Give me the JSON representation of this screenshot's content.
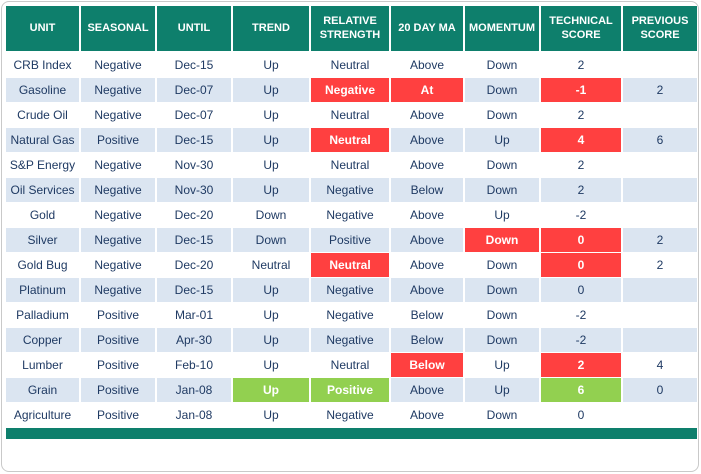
{
  "chart_data": {
    "type": "table",
    "columns": [
      "UNIT",
      "SEASONAL",
      "UNTIL",
      "TREND",
      "RELATIVE STRENGTH",
      "20 DAY MA",
      "MOMENTUM",
      "TECHNICAL SCORE",
      "PREVIOUS SCORE"
    ],
    "rows": [
      [
        "CRB Index",
        "Negative",
        "Dec-15",
        "Up",
        "Neutral",
        "Above",
        "Down",
        "2",
        ""
      ],
      [
        "Gasoline",
        "Negative",
        "Dec-07",
        "Up",
        {
          "text": "Negative",
          "bg": "red"
        },
        {
          "text": "At",
          "bg": "red"
        },
        "Down",
        {
          "text": "-1",
          "bg": "red"
        },
        "2"
      ],
      [
        "Crude Oil",
        "Negative",
        "Dec-07",
        "Up",
        "Neutral",
        "Above",
        "Down",
        "2",
        ""
      ],
      [
        "Natural Gas",
        "Positive",
        "Dec-15",
        "Up",
        {
          "text": "Neutral",
          "bg": "red"
        },
        "Above",
        "Up",
        {
          "text": "4",
          "bg": "red"
        },
        "6"
      ],
      [
        "S&P Energy",
        "Negative",
        "Nov-30",
        "Up",
        "Neutral",
        "Above",
        "Down",
        "2",
        ""
      ],
      [
        "Oil Services",
        "Negative",
        "Nov-30",
        "Up",
        "Negative",
        "Below",
        "Down",
        "2",
        ""
      ],
      [
        "Gold",
        "Negative",
        "Dec-20",
        "Down",
        "Negative",
        "Above",
        "Up",
        "-2",
        ""
      ],
      [
        "Silver",
        "Negative",
        "Dec-15",
        "Down",
        "Positive",
        "Above",
        {
          "text": "Down",
          "bg": "red"
        },
        {
          "text": "0",
          "bg": "red"
        },
        "2"
      ],
      [
        "Gold Bug",
        "Negative",
        "Dec-20",
        "Neutral",
        {
          "text": "Neutral",
          "bg": "red"
        },
        "Above",
        "Down",
        {
          "text": "0",
          "bg": "red"
        },
        "2"
      ],
      [
        "Platinum",
        "Negative",
        "Dec-15",
        "Up",
        "Negative",
        "Above",
        "Down",
        "0",
        ""
      ],
      [
        "Palladium",
        "Positive",
        "Mar-01",
        "Up",
        "Negative",
        "Below",
        "Down",
        "-2",
        ""
      ],
      [
        "Copper",
        "Positive",
        "Apr-30",
        "Up",
        "Negative",
        "Below",
        "Down",
        "-2",
        ""
      ],
      [
        "Lumber",
        "Positive",
        "Feb-10",
        "Up",
        "Neutral",
        {
          "text": "Below",
          "bg": "red"
        },
        "Up",
        {
          "text": "2",
          "bg": "red"
        },
        "4"
      ],
      [
        "Grain",
        "Positive",
        "Jan-08",
        {
          "text": "Up",
          "bg": "green"
        },
        {
          "text": "Positive",
          "bg": "green"
        },
        "Above",
        "Up",
        {
          "text": "6",
          "bg": "green"
        },
        "0"
      ],
      [
        "Agriculture",
        "Positive",
        "Jan-08",
        "Up",
        "Negative",
        "Above",
        "Down",
        "0",
        ""
      ]
    ]
  },
  "colors": {
    "header-bg": "#0e7f6c",
    "stripe": "#dbe5f1",
    "red": "#ff4040",
    "green": "#92d050",
    "text": "#1f3a63"
  }
}
